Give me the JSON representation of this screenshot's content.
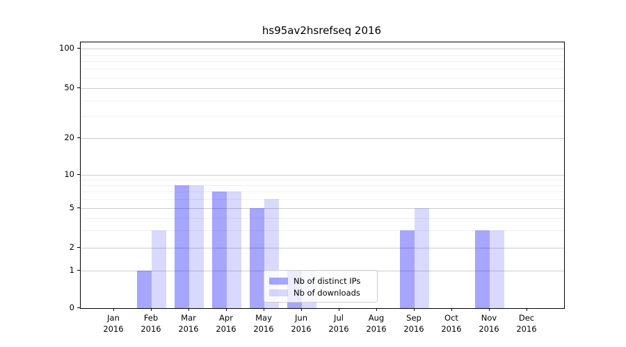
{
  "title": "hs95av2hsrefseq 2016",
  "legend": {
    "items": [
      {
        "label": "Nb of distinct IPs"
      },
      {
        "label": "Nb of downloads"
      }
    ]
  },
  "chart_data": {
    "type": "bar",
    "title": "hs95av2hsrefseq 2016",
    "categories": [
      "Jan 2016",
      "Feb 2016",
      "Mar 2016",
      "Apr 2016",
      "May 2016",
      "Jun 2016",
      "Jul 2016",
      "Aug 2016",
      "Sep 2016",
      "Oct 2016",
      "Nov 2016",
      "Dec 2016"
    ],
    "series": [
      {
        "name": "Nb of distinct IPs",
        "color": "#a6a6fa",
        "values": [
          0,
          1,
          8,
          7,
          5,
          1,
          0,
          0,
          3,
          0,
          3,
          0
        ]
      },
      {
        "name": "Nb of downloads",
        "color": "#d9d9fa",
        "values": [
          0,
          3,
          8,
          7,
          6,
          1,
          0,
          0,
          5,
          0,
          3,
          0
        ]
      }
    ],
    "xlabel": "",
    "ylabel": "",
    "yscale": "symlog",
    "yticks": [
      0,
      1,
      2,
      5,
      10,
      20,
      50,
      100
    ],
    "yminor_gridlines": [
      3,
      4,
      6,
      7,
      8,
      9,
      30,
      40,
      60,
      70,
      80,
      90
    ],
    "ylim": [
      0,
      110
    ],
    "grid": true,
    "legend_position": "lower center, inside plot"
  }
}
